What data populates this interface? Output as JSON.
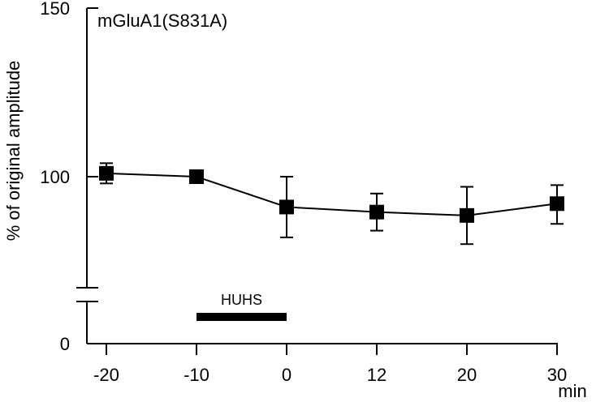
{
  "chart_data": {
    "type": "scatter",
    "annotation": "mGluA1(S831A)",
    "ylabel": "% of original amplitude",
    "xlabel": "min",
    "x_ticks": [
      -20,
      -10,
      0,
      12,
      20,
      30
    ],
    "y_ticks": [
      0,
      100,
      150
    ],
    "ylim": [
      0,
      150
    ],
    "y_axis_break": true,
    "points": [
      {
        "x": -20,
        "y": 101,
        "err_low": 98,
        "err_high": 104
      },
      {
        "x": -10,
        "y": 100,
        "err_low": 100,
        "err_high": 100
      },
      {
        "x": 0,
        "y": 91,
        "err_low": 82,
        "err_high": 100
      },
      {
        "x": 12,
        "y": 89.5,
        "err_low": 84,
        "err_high": 95
      },
      {
        "x": 20,
        "y": 88.5,
        "err_low": 80,
        "err_high": 97
      },
      {
        "x": 30,
        "y": 92,
        "err_low": 86,
        "err_high": 97.5
      }
    ],
    "treatment_bar": {
      "label": "HUHS",
      "x_start": -10,
      "x_end": 0
    }
  }
}
